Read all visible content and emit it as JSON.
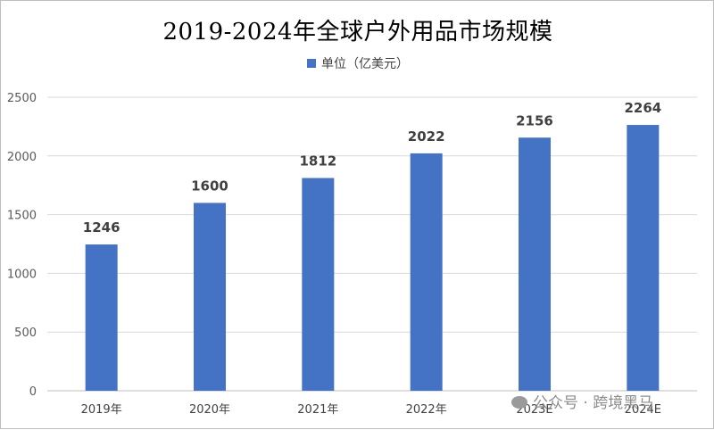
{
  "chart_data": {
    "type": "bar",
    "title": "2019-2024年全球户外用品市场规模",
    "categories": [
      "2019年",
      "2020年",
      "2021年",
      "2022年",
      "2023E",
      "2024E"
    ],
    "series": [
      {
        "name": "单位（亿美元）",
        "values": [
          1246,
          1600,
          1812,
          2022,
          2156,
          2264
        ],
        "color": "#4472c4"
      }
    ],
    "ylim": [
      0,
      2500
    ],
    "yticks": [
      0,
      500,
      1000,
      1500,
      2000,
      2500
    ],
    "grid": true,
    "legend_position": "top-center",
    "data_labels": true
  },
  "watermark": {
    "text": "公众号 · 跨境黑马",
    "icon": "wechat-icon"
  }
}
